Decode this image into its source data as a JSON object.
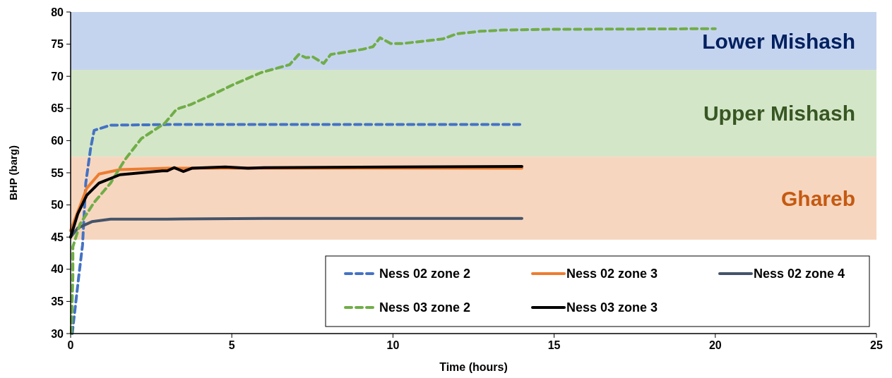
{
  "chart_data": {
    "type": "line",
    "xlabel": "Time (hours)",
    "ylabel": "BHP (barg)",
    "xlim": [
      0,
      25
    ],
    "ylim": [
      30,
      80
    ],
    "xticks": [
      0,
      5,
      10,
      15,
      20,
      25
    ],
    "yticks": [
      30,
      35,
      40,
      45,
      50,
      55,
      60,
      65,
      70,
      75,
      80
    ],
    "grid": false,
    "legend": "bottom right",
    "marker": "none",
    "bands": [
      {
        "axis": "y",
        "from": 71,
        "to": 80,
        "label": "Lower Mishash",
        "color": "#c5d4ee"
      },
      {
        "axis": "y",
        "from": 57.5,
        "to": 71,
        "label": "Upper Mishash",
        "color": "#d4e6c8"
      },
      {
        "axis": "y",
        "from": 44.6,
        "to": 57.5,
        "label": "Ghareb",
        "color": "#f7d6bf"
      }
    ],
    "series": [
      {
        "name": "Ness 02 zone 2",
        "color": "#4472c4",
        "line_style": "dashed",
        "x": [
          0.05,
          0.25,
          0.37,
          0.47,
          0.62,
          0.73,
          1.24,
          3,
          6,
          10,
          14
        ],
        "values": [
          30,
          38.8,
          43.8,
          53.4,
          58.8,
          61.6,
          62.4,
          62.5,
          62.5,
          62.5,
          62.5
        ]
      },
      {
        "name": "Ness 02 zone 3",
        "color": "#ed7d31",
        "line_style": "solid",
        "x": [
          0,
          0.5,
          0.88,
          1.53,
          3,
          6,
          10,
          14
        ],
        "values": [
          46,
          52.6,
          54.8,
          55.5,
          55.7,
          55.7,
          55.7,
          55.7
        ]
      },
      {
        "name": "Ness 02 zone 4",
        "color": "#44546a",
        "line_style": "solid",
        "x": [
          0,
          0.22,
          0.66,
          1.24,
          3,
          6,
          10,
          14
        ],
        "values": [
          45,
          46.4,
          47.4,
          47.8,
          47.8,
          47.9,
          47.9,
          47.9
        ]
      },
      {
        "name": "Ness 03 zone 2",
        "color": "#70ad47",
        "line_style": "dashed",
        "x": [
          0.02,
          0.07,
          0.07,
          0.29,
          0.73,
          1.24,
          1.68,
          2.19,
          2.92,
          3.29,
          3.72,
          4.38,
          5.04,
          5.92,
          6.79,
          7.08,
          7.3,
          7.52,
          7.85,
          8.07,
          9.06,
          9.38,
          9.6,
          9.93,
          10.3,
          11.54,
          11.98,
          12.71,
          13.43,
          14.83,
          20
        ],
        "values": [
          30,
          38.8,
          43.5,
          47,
          50.4,
          53.4,
          57,
          60.3,
          62.7,
          64.9,
          65.6,
          67.1,
          68.7,
          70.6,
          71.8,
          73.4,
          72.9,
          73,
          72,
          73.4,
          74.2,
          74.6,
          76,
          75.1,
          75.1,
          75.8,
          76.6,
          77,
          77.2,
          77.3,
          77.4
        ]
      },
      {
        "name": "Ness 03 zone 3",
        "color": "#000000",
        "line_style": "solid",
        "x": [
          0,
          0.22,
          0.5,
          0.88,
          1.53,
          2.85,
          3,
          3.21,
          3.5,
          3.76,
          4.8,
          5.5,
          6,
          10,
          14
        ],
        "values": [
          45,
          48.6,
          51.5,
          53.4,
          54.7,
          55.3,
          55.3,
          55.8,
          55.2,
          55.7,
          55.9,
          55.7,
          55.8,
          55.9,
          56
        ]
      }
    ]
  }
}
